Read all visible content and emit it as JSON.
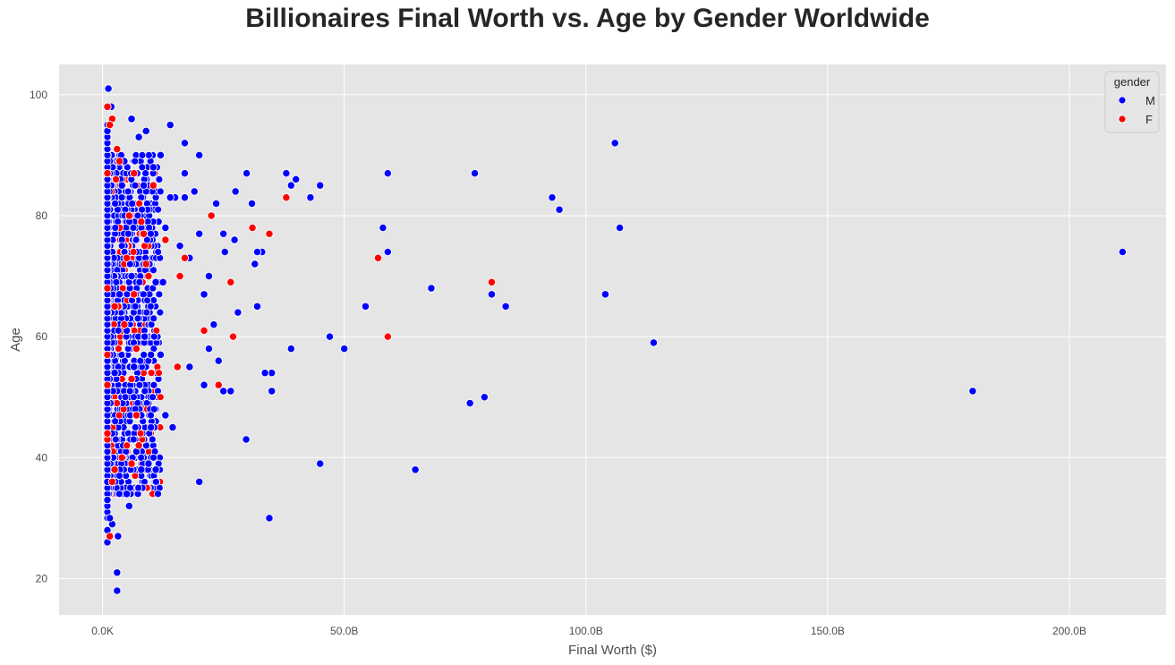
{
  "chart_data": {
    "type": "scatter",
    "title": "Billionaires Final Worth vs. Age by Gender Worldwide",
    "xlabel": "Final Worth ($)",
    "ylabel": "Age",
    "xlim": [
      -9.0,
      220.0
    ],
    "ylim": [
      14.0,
      105.0
    ],
    "x_unit": "B ($ billions)",
    "xticks": [
      0,
      50,
      100,
      150,
      200
    ],
    "xtick_labels": [
      "0.0K",
      "50.0B",
      "100.0B",
      "150.0B",
      "200.0B"
    ],
    "yticks": [
      20,
      40,
      60,
      80,
      100
    ],
    "ytick_labels": [
      "20",
      "40",
      "60",
      "80",
      "100"
    ],
    "grid": true,
    "legend": {
      "title": "gender",
      "placement": "top-right"
    },
    "colors": {
      "M": "#0000ff",
      "F": "#ff0000",
      "background": "#e5e5e5",
      "grid": "#ffffff"
    },
    "series": [
      {
        "name": "M",
        "color": "#0000ff",
        "points": [
          [
            211.0,
            74
          ],
          [
            180.0,
            51
          ],
          [
            114.0,
            59
          ],
          [
            107.0,
            78
          ],
          [
            106.0,
            92
          ],
          [
            104.0,
            67
          ],
          [
            94.5,
            81
          ],
          [
            93.0,
            83
          ],
          [
            83.4,
            65
          ],
          [
            80.5,
            67
          ],
          [
            79.0,
            50
          ],
          [
            77.0,
            87
          ],
          [
            76.0,
            49
          ],
          [
            68.0,
            68
          ],
          [
            64.7,
            38
          ],
          [
            59.0,
            87
          ],
          [
            59.0,
            74
          ],
          [
            58.0,
            78
          ],
          [
            54.4,
            65
          ],
          [
            50.0,
            58
          ],
          [
            47.0,
            60
          ],
          [
            45.0,
            85
          ],
          [
            45.0,
            39
          ],
          [
            43.0,
            83
          ],
          [
            40.0,
            86
          ],
          [
            39.0,
            85
          ],
          [
            39.0,
            58
          ],
          [
            38.0,
            87
          ],
          [
            35.0,
            54
          ],
          [
            35.0,
            51
          ],
          [
            34.5,
            30
          ],
          [
            33.6,
            54
          ],
          [
            33.0,
            74
          ],
          [
            32.0,
            65
          ],
          [
            32.0,
            74
          ],
          [
            31.5,
            72
          ],
          [
            30.9,
            82
          ],
          [
            29.8,
            87
          ],
          [
            29.7,
            43
          ],
          [
            28.0,
            64
          ],
          [
            27.5,
            84
          ],
          [
            27.3,
            76
          ],
          [
            26.5,
            51
          ],
          [
            25.3,
            74
          ],
          [
            25.0,
            77
          ],
          [
            25.0,
            51
          ],
          [
            24.0,
            56
          ],
          [
            23.5,
            82
          ],
          [
            23.0,
            62
          ],
          [
            22.0,
            58
          ],
          [
            22.0,
            70
          ],
          [
            21.0,
            67
          ],
          [
            21.0,
            52
          ],
          [
            20.0,
            90
          ],
          [
            20.0,
            77
          ],
          [
            20.0,
            36
          ],
          [
            19.0,
            84
          ],
          [
            18.0,
            73
          ],
          [
            18.0,
            55
          ],
          [
            17.0,
            92
          ],
          [
            17.0,
            87
          ],
          [
            17.0,
            83
          ],
          [
            16.0,
            75
          ],
          [
            15.0,
            83
          ],
          [
            14.5,
            45
          ],
          [
            14.0,
            83
          ],
          [
            14.0,
            95
          ],
          [
            13.0,
            78
          ],
          [
            13.0,
            47
          ],
          [
            12.0,
            90
          ],
          [
            12.5,
            69
          ],
          [
            12.0,
            57
          ],
          [
            11.0,
            38
          ],
          [
            11.0,
            69
          ],
          [
            10.5,
            88
          ],
          [
            10.0,
            57
          ],
          [
            10.0,
            45
          ],
          [
            9.5,
            39
          ],
          [
            9.0,
            94
          ],
          [
            8.7,
            60
          ],
          [
            8.5,
            85
          ],
          [
            8.0,
            47
          ],
          [
            8.0,
            38
          ],
          [
            7.5,
            93
          ],
          [
            7.0,
            41
          ],
          [
            6.5,
            55
          ],
          [
            6.0,
            96
          ],
          [
            6.0,
            70
          ],
          [
            5.5,
            32
          ],
          [
            5.0,
            61
          ],
          [
            5.0,
            34
          ],
          [
            4.5,
            89
          ],
          [
            4.0,
            85
          ],
          [
            3.5,
            67
          ],
          [
            3.2,
            27
          ],
          [
            3.0,
            21
          ],
          [
            3.0,
            18
          ],
          [
            2.5,
            54
          ],
          [
            2.0,
            29
          ],
          [
            1.8,
            98
          ],
          [
            1.5,
            30
          ],
          [
            1.2,
            101
          ],
          [
            1.0,
            94
          ],
          [
            1.0,
            26
          ],
          [
            1.0,
            28
          ],
          [
            1.0,
            36
          ],
          [
            1.0,
            33
          ]
        ]
      },
      {
        "name": "F",
        "color": "#ff0000",
        "points": [
          [
            80.5,
            69
          ],
          [
            59.0,
            60
          ],
          [
            57.0,
            73
          ],
          [
            38.0,
            83
          ],
          [
            34.5,
            77
          ],
          [
            31.0,
            78
          ],
          [
            27.0,
            60
          ],
          [
            26.5,
            69
          ],
          [
            24.0,
            52
          ],
          [
            22.5,
            80
          ],
          [
            21.0,
            61
          ],
          [
            17.0,
            73
          ],
          [
            16.0,
            70
          ],
          [
            15.5,
            55
          ],
          [
            13.0,
            76
          ],
          [
            10.5,
            85
          ],
          [
            9.5,
            70
          ],
          [
            9.0,
            72
          ],
          [
            8.5,
            77
          ],
          [
            8.0,
            79
          ],
          [
            7.5,
            42
          ],
          [
            7.0,
            47
          ],
          [
            7.0,
            58
          ],
          [
            6.5,
            87
          ],
          [
            6.5,
            67
          ],
          [
            6.0,
            39
          ],
          [
            6.0,
            53
          ],
          [
            5.5,
            80
          ],
          [
            5.0,
            73
          ],
          [
            4.5,
            62
          ],
          [
            4.0,
            40
          ],
          [
            3.5,
            89
          ],
          [
            3.0,
            91
          ],
          [
            2.5,
            65
          ],
          [
            2.5,
            38
          ],
          [
            2.0,
            96
          ],
          [
            2.0,
            36
          ],
          [
            1.5,
            95
          ],
          [
            1.0,
            98
          ],
          [
            1.0,
            87
          ],
          [
            1.0,
            68
          ],
          [
            1.0,
            57
          ],
          [
            1.0,
            52
          ],
          [
            1.0,
            43
          ],
          [
            1.0,
            44
          ],
          [
            1.5,
            27
          ]
        ]
      }
    ]
  }
}
